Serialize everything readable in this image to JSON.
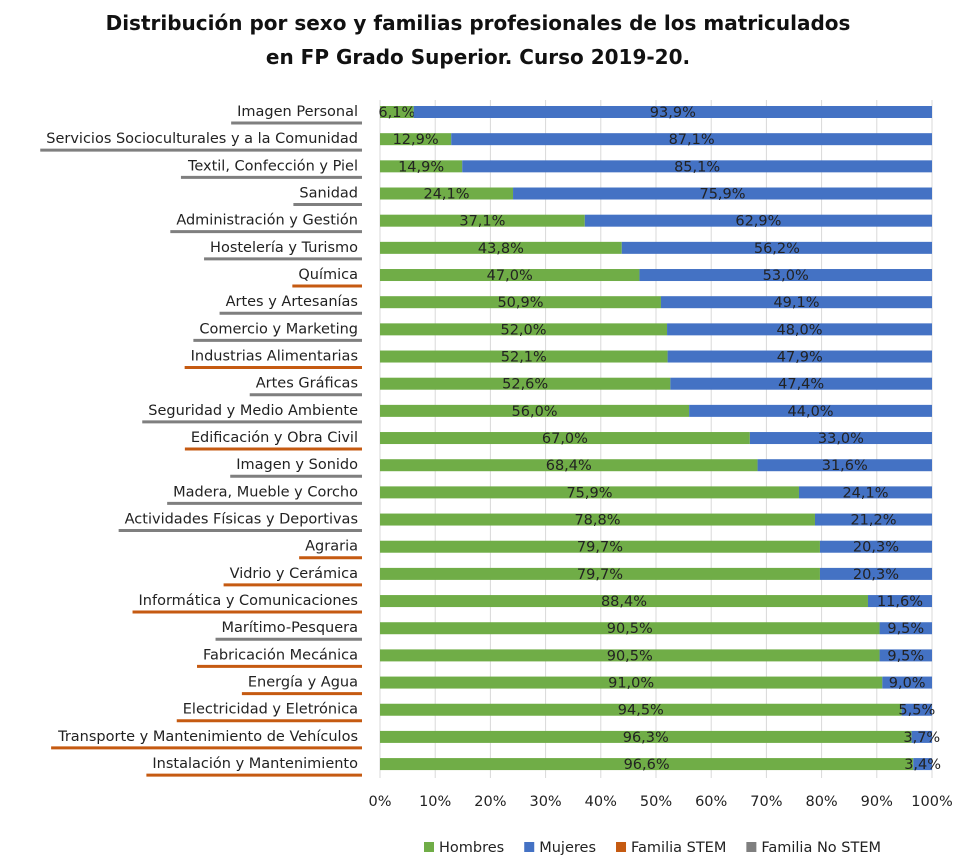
{
  "chart_data": {
    "type": "stacked_barh",
    "title": "Distribución por sexo y familias profesionales de los matriculados en FP Grado Superior. Curso 2019-20.",
    "categories": [
      "Imagen Personal",
      "Servicios Socioculturales y a la Comunidad",
      "Textil, Confección y Piel",
      "Sanidad",
      "Administración y Gestión",
      "Hostelería y Turismo",
      "Química",
      "Artes y Artesanías",
      "Comercio y Marketing",
      "Industrias Alimentarias",
      "Artes Gráficas",
      "Seguridad y Medio Ambiente",
      "Edificación y Obra Civil",
      "Imagen y Sonido",
      "Madera, Mueble y Corcho",
      "Actividades Físicas y Deportivas",
      "Agraria",
      "Vidrio y Cerámica",
      "Informática y Comunicaciones",
      "Marítimo-Pesquera",
      "Fabricación Mecánica",
      "Energía y Agua",
      "Electricidad y Eletrónica",
      "Transporte y Mantenimiento de Vehículos",
      "Instalación y Mantenimiento"
    ],
    "category_group": [
      1,
      1,
      1,
      1,
      1,
      1,
      0,
      1,
      1,
      0,
      1,
      1,
      0,
      1,
      1,
      1,
      0,
      0,
      0,
      1,
      0,
      0,
      0,
      0,
      0
    ],
    "groups": [
      {
        "name": "Familia STEM",
        "color": "#c55a11"
      },
      {
        "name": "Familia No STEM",
        "color": "#7f7f7f"
      }
    ],
    "series": [
      {
        "name": "Hombres",
        "color": "#70ad47",
        "values": [
          6.1,
          12.9,
          14.9,
          24.1,
          37.1,
          43.8,
          47.0,
          50.9,
          52.0,
          52.1,
          52.6,
          56.0,
          67.0,
          68.4,
          75.9,
          78.8,
          79.7,
          79.7,
          88.4,
          90.5,
          90.5,
          91.0,
          94.5,
          96.3,
          96.6
        ],
        "value_labels": [
          "6,1%",
          "12,9%",
          "14,9%",
          "24,1%",
          "37,1%",
          "43,8%",
          "47,0%",
          "50,9%",
          "52,0%",
          "52,1%",
          "52,6%",
          "56,0%",
          "67,0%",
          "68,4%",
          "75,9%",
          "78,8%",
          "79,7%",
          "79,7%",
          "88,4%",
          "90,5%",
          "90,5%",
          "91,0%",
          "94,5%",
          "96,3%",
          "96,6%"
        ]
      },
      {
        "name": "Mujeres",
        "color": "#4472c4",
        "values": [
          93.9,
          87.1,
          85.1,
          75.9,
          62.9,
          56.2,
          53.0,
          49.1,
          48.0,
          47.9,
          47.4,
          44.0,
          33.0,
          31.6,
          24.1,
          21.2,
          20.3,
          20.3,
          11.6,
          9.5,
          9.5,
          9.0,
          5.5,
          3.7,
          3.4
        ],
        "value_labels": [
          "93,9%",
          "87,1%",
          "85,1%",
          "75,9%",
          "62,9%",
          "56,2%",
          "53,0%",
          "49,1%",
          "48,0%",
          "47,9%",
          "47,4%",
          "44,0%",
          "33,0%",
          "31,6%",
          "24,1%",
          "21,2%",
          "20,3%",
          "20,3%",
          "11,6%",
          "9,5%",
          "9,5%",
          "9,0%",
          "5,5%",
          "3,7%",
          "3,4%"
        ]
      }
    ],
    "xlim": [
      0,
      100
    ],
    "xticks": [
      {
        "value": 0,
        "label": "0%"
      },
      {
        "value": 10,
        "label": "10%"
      },
      {
        "value": 20,
        "label": "20%"
      },
      {
        "value": 30,
        "label": "30%"
      },
      {
        "value": 40,
        "label": "40%"
      },
      {
        "value": 50,
        "label": "50%"
      },
      {
        "value": 60,
        "label": "60%"
      },
      {
        "value": 70,
        "label": "70%"
      },
      {
        "value": 80,
        "label": "80%"
      },
      {
        "value": 90,
        "label": "90%"
      },
      {
        "value": 100,
        "label": "100%"
      }
    ],
    "grid": true
  }
}
